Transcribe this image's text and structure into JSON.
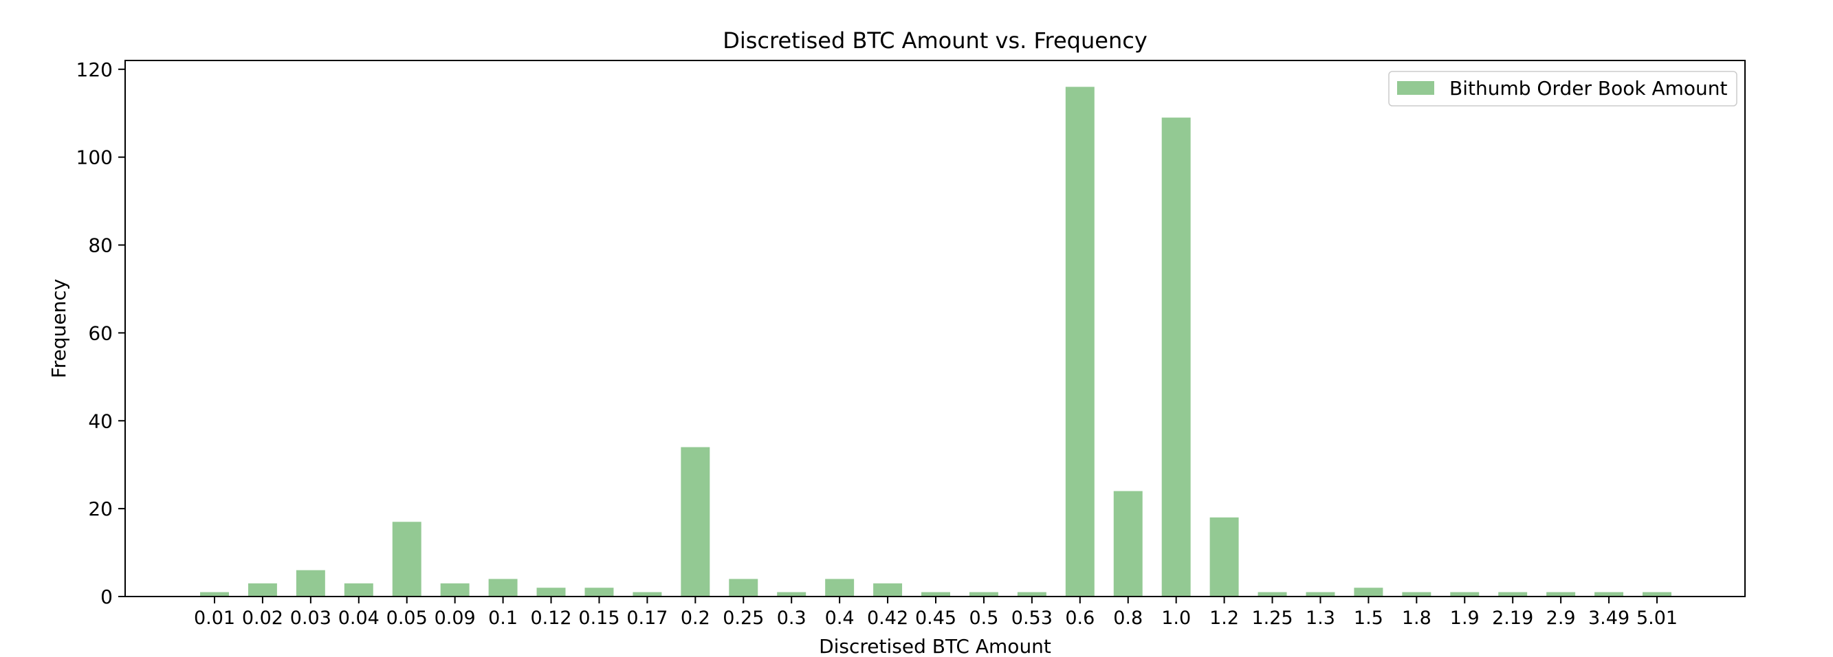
{
  "chart_data": {
    "type": "bar",
    "title": "Discretised BTC Amount vs. Frequency",
    "xlabel": "Discretised BTC Amount",
    "ylabel": "Frequency",
    "ylim": [
      0,
      122
    ],
    "yticks": [
      0,
      20,
      40,
      60,
      80,
      100,
      120
    ],
    "grid": false,
    "legend_position": "top-right",
    "categories": [
      "0.01",
      "0.02",
      "0.03",
      "0.04",
      "0.05",
      "0.09",
      "0.1",
      "0.12",
      "0.15",
      "0.17",
      "0.2",
      "0.25",
      "0.3",
      "0.4",
      "0.42",
      "0.45",
      "0.5",
      "0.53",
      "0.6",
      "0.8",
      "1.0",
      "1.2",
      "1.25",
      "1.3",
      "1.5",
      "1.8",
      "1.9",
      "2.19",
      "2.9",
      "3.49",
      "5.01"
    ],
    "series": [
      {
        "name": "Bithumb Order Book Amount",
        "color": "#93c993",
        "values": [
          1,
          3,
          6,
          3,
          17,
          3,
          4,
          2,
          2,
          1,
          34,
          4,
          1,
          4,
          3,
          1,
          1,
          1,
          116,
          24,
          109,
          18,
          1,
          1,
          2,
          1,
          1,
          1,
          1,
          1,
          1
        ]
      }
    ]
  }
}
